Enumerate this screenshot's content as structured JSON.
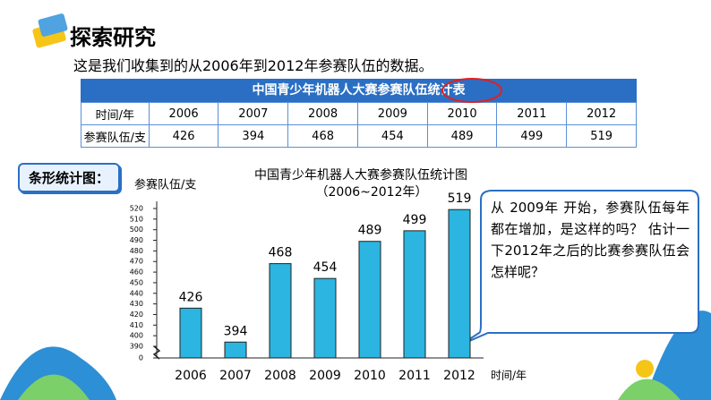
{
  "header": {
    "title": "探索研究",
    "intro": "这是我们收集到的从2006年到2012年参赛队伍的数据。"
  },
  "table": {
    "title": "中国青少年机器人大赛参赛队伍统计表",
    "rows": [
      [
        "时间/年",
        "2006",
        "2007",
        "2008",
        "2009",
        "2010",
        "2011",
        "2012"
      ],
      [
        "参赛队伍/支",
        "426",
        "394",
        "468",
        "454",
        "489",
        "499",
        "519"
      ]
    ]
  },
  "tag": "条形统计图：",
  "bubble": "从 2009年 开始，参赛队伍每年都在增加，是这样的吗？ 估计一下2012年之后的比赛参赛队伍会怎样呢？",
  "chart_data": {
    "type": "bar",
    "title": "中国青少年机器人大赛参赛队伍统计图",
    "subtitle": "（2006~2012年）",
    "y_label": "参赛队伍/支",
    "x_label": "时间/年",
    "categories": [
      "2006",
      "2007",
      "2008",
      "2009",
      "2010",
      "2011",
      "2012"
    ],
    "values": [
      426,
      394,
      468,
      454,
      489,
      499,
      519
    ],
    "color": "#2bb5e0",
    "ylim": [
      0,
      520
    ],
    "axis_break": [
      0,
      390
    ],
    "yticks": [
      0,
      390,
      400,
      410,
      420,
      430,
      440,
      450,
      460,
      470,
      480,
      490,
      500,
      510,
      520
    ]
  }
}
